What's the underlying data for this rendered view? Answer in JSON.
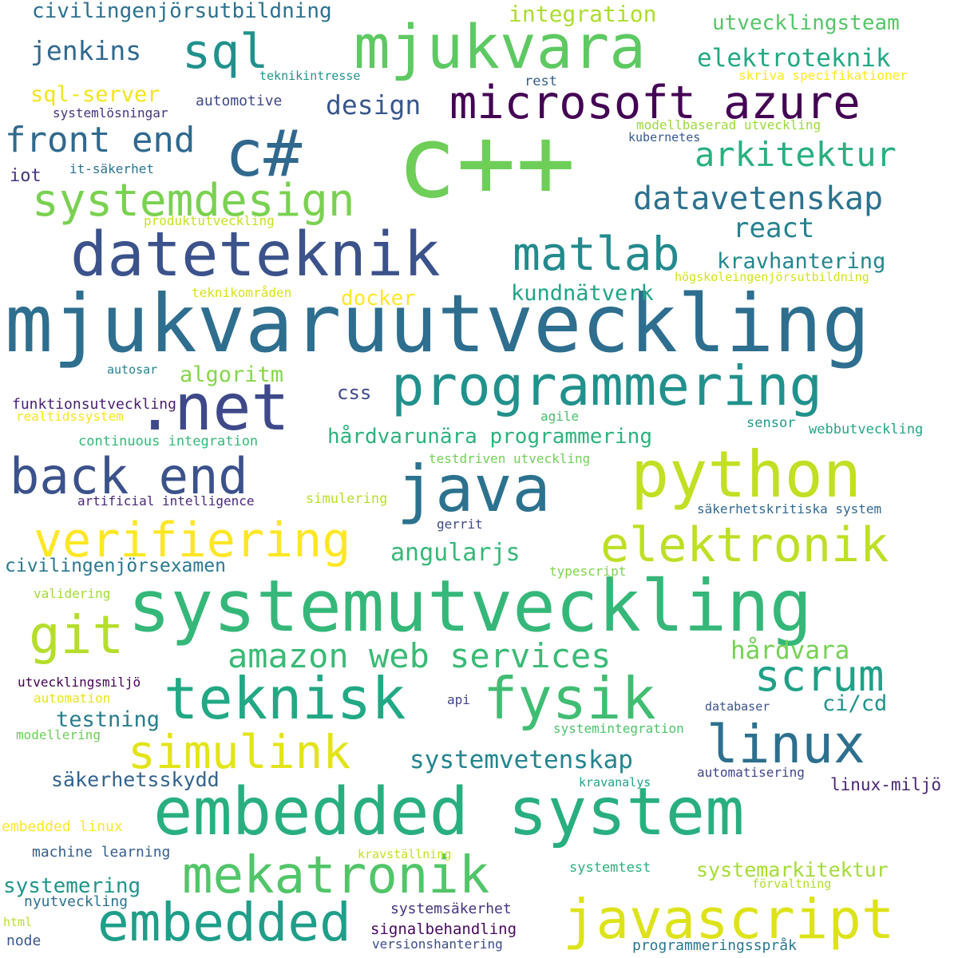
{
  "words": [
    {
      "text": "c++",
      "color": "#6ece58"
    },
    {
      "text": "mjukvaruutveckling",
      "color": "#2e6e8e"
    },
    {
      "text": "systemutveckling",
      "color": "#35b779"
    },
    {
      "text": "embedded system",
      "color": "#29af7f"
    },
    {
      "text": "mjukvara",
      "color": "#5ec962"
    },
    {
      "text": "dateteknik",
      "color": "#3b528b"
    },
    {
      "text": "programmering",
      "color": "#21918c"
    },
    {
      "text": "java",
      "color": "#2c728e"
    },
    {
      "text": "python",
      "color": "#c2df23"
    },
    {
      "text": ".net",
      "color": "#3e4989"
    },
    {
      "text": "microsoft azure",
      "color": "#440154"
    },
    {
      "text": "c#",
      "color": "#31688e"
    },
    {
      "text": "systemdesign",
      "color": "#7ad151"
    },
    {
      "text": "teknisk",
      "color": "#22a884"
    },
    {
      "text": "fysik",
      "color": "#40bd72"
    },
    {
      "text": "javascript",
      "color": "#dde318"
    },
    {
      "text": "embedded",
      "color": "#1f9e89"
    },
    {
      "text": "mekatronik",
      "color": "#52c569"
    },
    {
      "text": "back end",
      "color": "#3b528b"
    },
    {
      "text": "verifiering",
      "color": "#fde725"
    },
    {
      "text": "elektronik",
      "color": "#bddf26"
    },
    {
      "text": "linux",
      "color": "#2d708e"
    },
    {
      "text": "simulink",
      "color": "#e2e418"
    },
    {
      "text": "git",
      "color": "#b5de2b"
    },
    {
      "text": "matlab",
      "color": "#238a8d"
    },
    {
      "text": "sql",
      "color": "#21918c"
    },
    {
      "text": "front end",
      "color": "#30698e"
    },
    {
      "text": "scrum",
      "color": "#1fa187"
    },
    {
      "text": "amazon web services",
      "color": "#3aba76"
    },
    {
      "text": "datavetenskap",
      "color": "#2c728e"
    },
    {
      "text": "arkitektur",
      "color": "#29af7f"
    },
    {
      "text": "elektroteknik",
      "color": "#22a884"
    },
    {
      "text": "design",
      "color": "#39568c"
    },
    {
      "text": "jenkins",
      "color": "#31688e"
    },
    {
      "text": "civilingenjörsutbildning",
      "color": "#2d708e"
    },
    {
      "text": "integration",
      "color": "#addc30"
    },
    {
      "text": "utvecklingsteam",
      "color": "#54c568"
    },
    {
      "text": "react",
      "color": "#26818e"
    },
    {
      "text": "kravhantering",
      "color": "#24878e"
    },
    {
      "text": "kundnätverk",
      "color": "#20a386"
    },
    {
      "text": "docker",
      "color": "#fde725"
    },
    {
      "text": "algoritm",
      "color": "#86d549"
    },
    {
      "text": "css",
      "color": "#3e4989"
    },
    {
      "text": "hårdvarunära programmering",
      "color": "#2db27d"
    },
    {
      "text": "angularjs",
      "color": "#37b878"
    },
    {
      "text": "hårdvara",
      "color": "#75d054"
    },
    {
      "text": "ci/cd",
      "color": "#20928c"
    },
    {
      "text": "testning",
      "color": "#287c8e"
    },
    {
      "text": "systemvetenskap",
      "color": "#25848e"
    },
    {
      "text": "säkerhetsskydd",
      "color": "#33638d"
    },
    {
      "text": "linux-miljö",
      "color": "#482576"
    },
    {
      "text": "systemarkitektur",
      "color": "#a5db36"
    },
    {
      "text": "systemering",
      "color": "#1f968b"
    },
    {
      "text": "civilingenjörsexamen",
      "color": "#2a788e"
    },
    {
      "text": "sql-server",
      "color": "#f1e51d"
    },
    {
      "text": "automotive",
      "color": "#3f4788"
    },
    {
      "text": "systemlösningar",
      "color": "#46327e"
    },
    {
      "text": "iot",
      "color": "#463480"
    },
    {
      "text": "it-säkerhet",
      "color": "#2c728e"
    },
    {
      "text": "produktutveckling",
      "color": "#c8e020"
    },
    {
      "text": "teknikintresse",
      "color": "#20938c"
    },
    {
      "text": "rest",
      "color": "#355f8d"
    },
    {
      "text": "skriva specifikationer",
      "color": "#fde725"
    },
    {
      "text": "modellbaserad utveckling",
      "color": "#9bd93c"
    },
    {
      "text": "kubernetes",
      "color": "#38588c"
    },
    {
      "text": "högskoleingenjörsutbildning",
      "color": "#d2e21b"
    },
    {
      "text": "teknikområden",
      "color": "#d8e219"
    },
    {
      "text": "autosar",
      "color": "#26828e"
    },
    {
      "text": "funktionsutveckling",
      "color": "#481f70"
    },
    {
      "text": "realtidssystem",
      "color": "#f6e620"
    },
    {
      "text": "agile",
      "color": "#4ac16d"
    },
    {
      "text": "sensor",
      "color": "#1f9a8a"
    },
    {
      "text": "webbutveckling",
      "color": "#21a685"
    },
    {
      "text": "continuous integration",
      "color": "#35b779"
    },
    {
      "text": "testdriven utveckling",
      "color": "#73d056"
    },
    {
      "text": "artificial intelligence",
      "color": "#482878"
    },
    {
      "text": "simulering",
      "color": "#b8de29"
    },
    {
      "text": "säkerhetskritiska system",
      "color": "#31688e"
    },
    {
      "text": "gerrit",
      "color": "#3e4a89"
    },
    {
      "text": "typescript",
      "color": "#7fd34e"
    },
    {
      "text": "validering",
      "color": "#a2da37"
    },
    {
      "text": "utvecklingsmiljö",
      "color": "#440154"
    },
    {
      "text": "automation",
      "color": "#e7e419"
    },
    {
      "text": "api",
      "color": "#404588"
    },
    {
      "text": "databaser",
      "color": "#3b528b"
    },
    {
      "text": "modellering",
      "color": "#6ccd5a"
    },
    {
      "text": "systemintegration",
      "color": "#4ec36b"
    },
    {
      "text": "automatisering",
      "color": "#404688"
    },
    {
      "text": "kravanalys",
      "color": "#1fa088"
    },
    {
      "text": "embedded linux",
      "color": "#fde725"
    },
    {
      "text": "machine learning",
      "color": "#365d8d"
    },
    {
      "text": "kravställning",
      "color": "#c5e021"
    },
    {
      "text": "systemtest",
      "color": "#2ab07f"
    },
    {
      "text": "förvaltning",
      "color": "#b2dd2d"
    },
    {
      "text": "nyutveckling",
      "color": "#2c718e"
    },
    {
      "text": "systemsäkerhet",
      "color": "#46337e"
    },
    {
      "text": "html",
      "color": "#b8de29"
    },
    {
      "text": "node",
      "color": "#39568c"
    },
    {
      "text": "signalbehandling",
      "color": "#46085c"
    },
    {
      "text": "versionshantering",
      "color": "#3d4d8a"
    },
    {
      "text": "programmeringsspråk",
      "color": "#2a768e"
    }
  ]
}
